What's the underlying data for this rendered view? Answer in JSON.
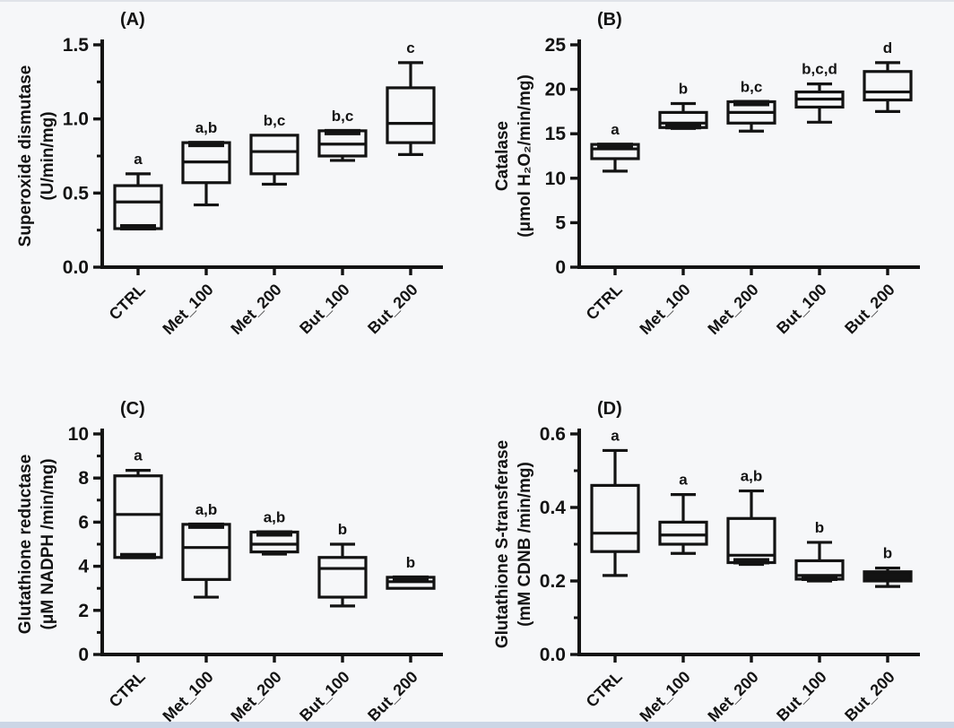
{
  "figure": {
    "bg_color": "#f6f7f9",
    "bottom_strip_color": "#ccd6e6",
    "ink_color": "#131313",
    "description": "Four-panel box plot figure of antioxidant enzyme activities"
  },
  "chart_data": [
    {
      "type": "box",
      "panel_label": "(A)",
      "title": "(A)",
      "ylabel_line1": "Superoxide dismutase",
      "ylabel_line2": "(U/min/mg)",
      "categories": [
        "CTRL",
        "Met_100",
        "Met_200",
        "But_100",
        "But_200"
      ],
      "ylim": [
        0,
        1.5
      ],
      "ytick_values": [
        0.0,
        0.5,
        1.0,
        1.5
      ],
      "ytick_labels": [
        "0.0",
        "0.5",
        "1.0",
        "1.5"
      ],
      "yticks_minor": [
        0.25,
        0.75,
        1.25
      ],
      "grid": false,
      "boxes": [
        {
          "category": "CTRL",
          "min": 0.26,
          "q1": 0.26,
          "median": 0.44,
          "q3": 0.55,
          "max": 0.63,
          "sig": "a",
          "thick": "bottom"
        },
        {
          "category": "Met_100",
          "min": 0.42,
          "q1": 0.57,
          "median": 0.71,
          "q3": 0.84,
          "max": 0.84,
          "sig": "a,b",
          "thick": "top"
        },
        {
          "category": "Met_200",
          "min": 0.56,
          "q1": 0.63,
          "median": 0.78,
          "q3": 0.89,
          "max": 0.89,
          "sig": "b,c",
          "thick": null
        },
        {
          "category": "But_100",
          "min": 0.72,
          "q1": 0.75,
          "median": 0.83,
          "q3": 0.92,
          "max": 0.92,
          "sig": "b,c",
          "thick": "top"
        },
        {
          "category": "But_200",
          "min": 0.76,
          "q1": 0.84,
          "median": 0.97,
          "q3": 1.21,
          "max": 1.38,
          "sig": "c",
          "thick": null
        }
      ]
    },
    {
      "type": "box",
      "panel_label": "(B)",
      "title": "(B)",
      "ylabel_line1": "Catalase",
      "ylabel_line2": "(μmol H₂O₂/min/mg)",
      "categories": [
        "CTRL",
        "Met_100",
        "Met_200",
        "But_100",
        "But_200"
      ],
      "ylim": [
        0,
        25
      ],
      "ytick_values": [
        0,
        5,
        10,
        15,
        20,
        25
      ],
      "ytick_labels": [
        "0",
        "5",
        "10",
        "15",
        "20",
        "25"
      ],
      "yticks_minor": [],
      "grid": false,
      "boxes": [
        {
          "category": "CTRL",
          "min": 10.8,
          "q1": 12.2,
          "median": 13.3,
          "q3": 13.8,
          "max": 13.8,
          "sig": "a",
          "thick": "top"
        },
        {
          "category": "Met_100",
          "min": 15.6,
          "q1": 15.7,
          "median": 16.2,
          "q3": 17.4,
          "max": 18.4,
          "sig": "b",
          "thick": "bottom"
        },
        {
          "category": "Met_200",
          "min": 15.3,
          "q1": 16.2,
          "median": 17.4,
          "q3": 18.6,
          "max": 18.6,
          "sig": "b,c",
          "thick": "top"
        },
        {
          "category": "But_100",
          "min": 16.3,
          "q1": 18.0,
          "median": 18.9,
          "q3": 19.7,
          "max": 20.6,
          "sig": "b,c,d",
          "thick": null
        },
        {
          "category": "But_200",
          "min": 17.5,
          "q1": 18.8,
          "median": 19.7,
          "q3": 22.0,
          "max": 23.0,
          "sig": "d",
          "thick": null
        }
      ]
    },
    {
      "type": "box",
      "panel_label": "(C)",
      "title": "(C)",
      "ylabel_line1": "Glutathione reductase",
      "ylabel_line2": "(μM NADPH /min/mg)",
      "categories": [
        "CTRL",
        "Met_100",
        "Met_200",
        "But_100",
        "But_200"
      ],
      "ylim": [
        0,
        10
      ],
      "ytick_values": [
        0,
        2,
        4,
        6,
        8,
        10
      ],
      "ytick_labels": [
        "0",
        "2",
        "4",
        "6",
        "8",
        "10"
      ],
      "yticks_minor": [
        1,
        3,
        5,
        7,
        9
      ],
      "grid": false,
      "boxes": [
        {
          "category": "CTRL",
          "min": 4.4,
          "q1": 4.4,
          "median": 6.35,
          "q3": 8.1,
          "max": 8.35,
          "sig": "a",
          "thick": "bottom"
        },
        {
          "category": "Met_100",
          "min": 2.6,
          "q1": 3.4,
          "median": 4.85,
          "q3": 5.9,
          "max": 5.9,
          "sig": "a,b",
          "thick": "top"
        },
        {
          "category": "Met_200",
          "min": 4.55,
          "q1": 4.65,
          "median": 5.0,
          "q3": 5.55,
          "max": 5.55,
          "sig": "a,b",
          "thick": "top"
        },
        {
          "category": "But_100",
          "min": 2.2,
          "q1": 2.6,
          "median": 3.9,
          "q3": 4.4,
          "max": 5.0,
          "sig": "b",
          "thick": null
        },
        {
          "category": "But_200",
          "min": 3.0,
          "q1": 3.0,
          "median": 3.3,
          "q3": 3.5,
          "max": 3.5,
          "sig": "b",
          "thick": "top"
        }
      ]
    },
    {
      "type": "box",
      "panel_label": "(D)",
      "title": "(D)",
      "ylabel_line1": "Glutathione S-transferase",
      "ylabel_line2": "(mM CDNB /min/mg)",
      "categories": [
        "CTRL",
        "Met_100",
        "Met_200",
        "But_100",
        "But_200"
      ],
      "ylim": [
        0,
        0.6
      ],
      "ytick_values": [
        0.0,
        0.2,
        0.4,
        0.6
      ],
      "ytick_labels": [
        "0.0",
        "0.2",
        "0.4",
        "0.6"
      ],
      "yticks_minor": [
        0.1,
        0.3,
        0.5
      ],
      "grid": false,
      "boxes": [
        {
          "category": "CTRL",
          "min": 0.215,
          "q1": 0.28,
          "median": 0.33,
          "q3": 0.46,
          "max": 0.555,
          "sig": "a",
          "thick": null
        },
        {
          "category": "Met_100",
          "min": 0.275,
          "q1": 0.3,
          "median": 0.325,
          "q3": 0.36,
          "max": 0.435,
          "sig": "a",
          "thick": null
        },
        {
          "category": "Met_200",
          "min": 0.245,
          "q1": 0.25,
          "median": 0.27,
          "q3": 0.37,
          "max": 0.445,
          "sig": "a,b",
          "thick": "bottom"
        },
        {
          "category": "But_100",
          "min": 0.2,
          "q1": 0.205,
          "median": 0.215,
          "q3": 0.255,
          "max": 0.305,
          "sig": "b",
          "thick": "bottom"
        },
        {
          "category": "But_200",
          "min": 0.185,
          "q1": 0.2,
          "median": 0.21,
          "q3": 0.225,
          "max": 0.235,
          "sig": "b",
          "thick": "fill"
        }
      ]
    }
  ]
}
